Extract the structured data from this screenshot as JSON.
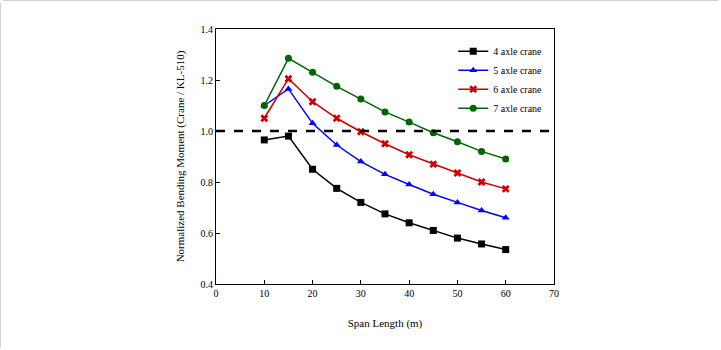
{
  "chart_data": {
    "type": "line",
    "x_label": "Span Length (m)",
    "y_label": "Normalized Bending Moment (Crane / KL-510)",
    "x": [
      10,
      15,
      20,
      25,
      30,
      35,
      40,
      45,
      50,
      55,
      60
    ],
    "series": [
      {
        "name": "4 axle crane",
        "color": "#000000",
        "marker": "square",
        "values": [
          0.965,
          0.98,
          0.85,
          0.775,
          0.72,
          0.675,
          0.64,
          0.61,
          0.58,
          0.557,
          0.535
        ]
      },
      {
        "name": "5 axle crane",
        "color": "#0000ff",
        "marker": "triangle",
        "values": [
          1.1,
          1.165,
          1.03,
          0.945,
          0.88,
          0.83,
          0.79,
          0.752,
          0.72,
          0.688,
          0.66
        ]
      },
      {
        "name": "6 axle crane",
        "color": "#cc0000",
        "marker": "x",
        "values": [
          1.05,
          1.205,
          1.115,
          1.05,
          0.997,
          0.95,
          0.907,
          0.87,
          0.835,
          0.8,
          0.773
        ]
      },
      {
        "name": "7 axle crane",
        "color": "#006400",
        "marker": "circle",
        "values": [
          1.1,
          1.285,
          1.23,
          1.175,
          1.125,
          1.075,
          1.035,
          0.993,
          0.958,
          0.92,
          0.89
        ]
      }
    ],
    "reference_line": {
      "value": 1,
      "line_style": "dashed",
      "color": "#000000"
    },
    "xlim": [
      0,
      70
    ],
    "xticks": [
      0,
      10,
      20,
      30,
      40,
      50,
      60,
      70
    ],
    "ylim": [
      0.4,
      1.4
    ],
    "yticks": [
      0.4,
      0.6,
      0.8,
      {
        "value": 1,
        "label": "1.0"
      },
      1.2,
      1.4
    ],
    "grid": false,
    "legend": "upper right"
  }
}
